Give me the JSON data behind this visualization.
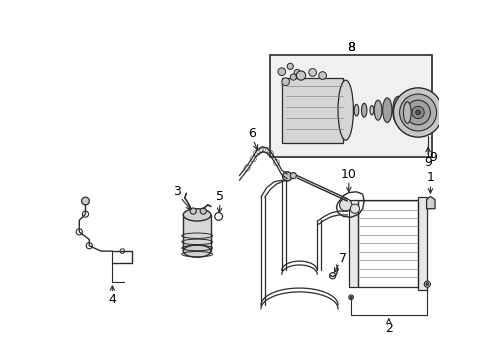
{
  "bg_color": "#ffffff",
  "lc": "#2a2a2a",
  "fig_w": 4.89,
  "fig_h": 3.6,
  "dpi": 100,
  "box_fill": "#e0e0e0",
  "comp_fill": "#d0d0d0"
}
